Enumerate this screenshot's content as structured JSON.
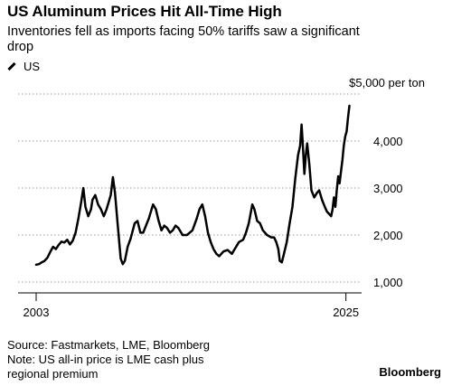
{
  "header": {
    "title": "US Aluminum Prices Hit All-Time High",
    "subtitle": "Inventories fell as imports facing 50% tariffs saw a significant drop"
  },
  "legend": {
    "label": "US"
  },
  "footer": {
    "source": "Source: Fastmarkets, LME, Bloomberg",
    "note_line1": "Note: US all-in price is LME cash plus",
    "note_line2": "regional premium",
    "brand": "Bloomberg"
  },
  "chart_data": {
    "type": "line",
    "unit_label": "$5,000 per ton",
    "ylim": [
      1000,
      5000
    ],
    "yticks": [
      {
        "value": 1000,
        "label": "1,000"
      },
      {
        "value": 2000,
        "label": "2,000"
      },
      {
        "value": 3000,
        "label": "3,000"
      },
      {
        "value": 4000,
        "label": "4,000"
      }
    ],
    "top_tick": {
      "value": 5000
    },
    "xlim": [
      2003,
      2025.6
    ],
    "xticks": [
      {
        "value": 2003,
        "label": "2003"
      },
      {
        "value": 2025,
        "label": "2025"
      }
    ],
    "grid": true,
    "legend_position": "top-left",
    "color": "#000000",
    "series": [
      {
        "name": "US",
        "points": [
          [
            2003.0,
            1370
          ],
          [
            2003.2,
            1380
          ],
          [
            2003.4,
            1420
          ],
          [
            2003.6,
            1450
          ],
          [
            2003.8,
            1520
          ],
          [
            2004.0,
            1640
          ],
          [
            2004.2,
            1750
          ],
          [
            2004.4,
            1700
          ],
          [
            2004.6,
            1790
          ],
          [
            2004.8,
            1860
          ],
          [
            2005.0,
            1840
          ],
          [
            2005.2,
            1900
          ],
          [
            2005.4,
            1800
          ],
          [
            2005.6,
            1880
          ],
          [
            2005.8,
            2050
          ],
          [
            2006.0,
            2350
          ],
          [
            2006.2,
            2700
          ],
          [
            2006.35,
            3000
          ],
          [
            2006.5,
            2600
          ],
          [
            2006.7,
            2400
          ],
          [
            2006.9,
            2550
          ],
          [
            2007.0,
            2750
          ],
          [
            2007.2,
            2850
          ],
          [
            2007.4,
            2650
          ],
          [
            2007.6,
            2550
          ],
          [
            2007.8,
            2400
          ],
          [
            2008.0,
            2550
          ],
          [
            2008.3,
            2850
          ],
          [
            2008.45,
            3230
          ],
          [
            2008.6,
            2900
          ],
          [
            2008.8,
            2200
          ],
          [
            2009.0,
            1500
          ],
          [
            2009.15,
            1380
          ],
          [
            2009.3,
            1450
          ],
          [
            2009.5,
            1750
          ],
          [
            2009.7,
            1920
          ],
          [
            2010.0,
            2250
          ],
          [
            2010.2,
            2300
          ],
          [
            2010.4,
            2050
          ],
          [
            2010.6,
            2050
          ],
          [
            2010.8,
            2200
          ],
          [
            2011.0,
            2350
          ],
          [
            2011.3,
            2650
          ],
          [
            2011.5,
            2550
          ],
          [
            2011.7,
            2300
          ],
          [
            2011.9,
            2100
          ],
          [
            2012.1,
            2200
          ],
          [
            2012.3,
            2150
          ],
          [
            2012.5,
            2050
          ],
          [
            2012.7,
            2100
          ],
          [
            2012.9,
            2200
          ],
          [
            2013.1,
            2150
          ],
          [
            2013.4,
            2000
          ],
          [
            2013.7,
            2000
          ],
          [
            2013.9,
            2050
          ],
          [
            2014.1,
            2100
          ],
          [
            2014.4,
            2350
          ],
          [
            2014.6,
            2550
          ],
          [
            2014.8,
            2650
          ],
          [
            2015.0,
            2400
          ],
          [
            2015.2,
            2050
          ],
          [
            2015.4,
            1850
          ],
          [
            2015.6,
            1700
          ],
          [
            2015.8,
            1600
          ],
          [
            2016.0,
            1550
          ],
          [
            2016.3,
            1650
          ],
          [
            2016.6,
            1680
          ],
          [
            2016.9,
            1600
          ],
          [
            2017.1,
            1700
          ],
          [
            2017.4,
            1850
          ],
          [
            2017.7,
            1900
          ],
          [
            2017.9,
            2050
          ],
          [
            2018.1,
            2250
          ],
          [
            2018.35,
            2650
          ],
          [
            2018.5,
            2550
          ],
          [
            2018.7,
            2300
          ],
          [
            2018.9,
            2250
          ],
          [
            2019.1,
            2100
          ],
          [
            2019.4,
            2000
          ],
          [
            2019.7,
            1950
          ],
          [
            2019.9,
            1950
          ],
          [
            2020.05,
            1850
          ],
          [
            2020.2,
            1700
          ],
          [
            2020.3,
            1450
          ],
          [
            2020.45,
            1420
          ],
          [
            2020.6,
            1600
          ],
          [
            2020.8,
            1850
          ],
          [
            2021.0,
            2250
          ],
          [
            2021.2,
            2600
          ],
          [
            2021.4,
            3200
          ],
          [
            2021.6,
            3700
          ],
          [
            2021.75,
            3900
          ],
          [
            2021.85,
            4350
          ],
          [
            2021.95,
            3850
          ],
          [
            2022.05,
            3300
          ],
          [
            2022.15,
            3700
          ],
          [
            2022.25,
            3950
          ],
          [
            2022.4,
            3500
          ],
          [
            2022.55,
            2950
          ],
          [
            2022.75,
            2800
          ],
          [
            2022.95,
            2900
          ],
          [
            2023.1,
            2950
          ],
          [
            2023.3,
            2750
          ],
          [
            2023.5,
            2600
          ],
          [
            2023.65,
            2500
          ],
          [
            2023.8,
            2450
          ],
          [
            2023.95,
            2400
          ],
          [
            2024.05,
            2550
          ],
          [
            2024.15,
            2800
          ],
          [
            2024.25,
            2600
          ],
          [
            2024.35,
            2950
          ],
          [
            2024.45,
            3250
          ],
          [
            2024.55,
            3100
          ],
          [
            2024.65,
            3350
          ],
          [
            2024.75,
            3600
          ],
          [
            2024.85,
            3900
          ],
          [
            2024.95,
            4100
          ],
          [
            2025.05,
            4200
          ],
          [
            2025.15,
            4500
          ],
          [
            2025.25,
            4750
          ]
        ]
      }
    ]
  }
}
